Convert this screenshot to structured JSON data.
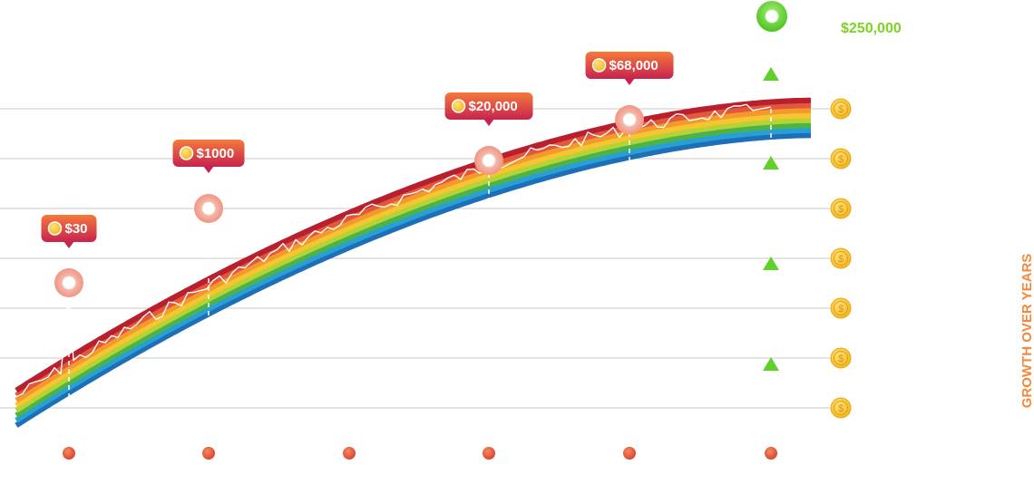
{
  "chart_data": {
    "type": "line",
    "title": "",
    "ylabel": "GROWTH OVER YEARS",
    "xlabel": "",
    "grid": true,
    "y_gridline_count": 7,
    "x_markers": 6,
    "milestones": [
      {
        "label": "$30",
        "x_index": 0
      },
      {
        "label": "$1000",
        "x_index": 1
      },
      {
        "label": "$20,000",
        "x_index": 3
      },
      {
        "label": "$68,000",
        "x_index": 4
      },
      {
        "label": "$250,000",
        "x_index": 5
      }
    ],
    "y_axis_icons": [
      "$",
      "$",
      "$",
      "$",
      "$",
      "$",
      "$"
    ],
    "band_colors": [
      "#1d6fb8",
      "#2a9fd6",
      "#4cb34a",
      "#b5d334",
      "#f7c432",
      "#f29a2e",
      "#e4573b",
      "#b8202e"
    ],
    "accent_colors": {
      "callout_top": "#f47a3a",
      "callout_bottom": "#c7234f",
      "marker_dot": "#e0533a",
      "arrow": "#5fd12a",
      "top_label": "#7ed321",
      "side_label": "#f5883a",
      "coin": "#f7c52b"
    }
  }
}
